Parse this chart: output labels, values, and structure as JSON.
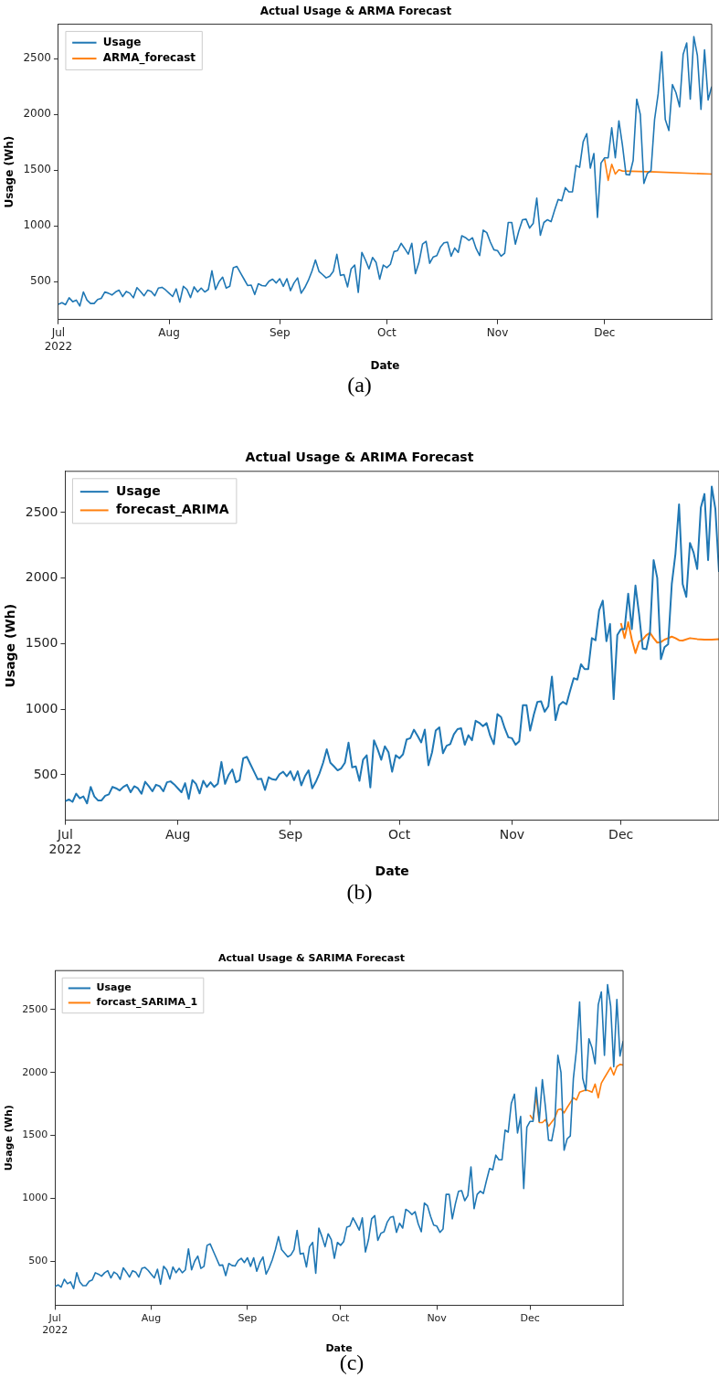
{
  "chart_data": [
    {
      "type": "line",
      "title": "Actual Usage & ARMA Forecast",
      "xlabel": "Date",
      "ylabel": "Usage (Wh)",
      "annotations": [
        "(a)"
      ],
      "legend": "top left",
      "xlim": [
        "2022-07-01",
        "2022-12-31"
      ],
      "ylim": [
        160,
        2810
      ],
      "yticks": [
        500,
        1000,
        1500,
        2000,
        2500
      ],
      "xticks": [
        {
          "value": "2022-07-01",
          "label": "Jul\n2022"
        },
        {
          "value": "2022-08-01",
          "label": "Aug"
        },
        {
          "value": "2022-09-01",
          "label": "Sep"
        },
        {
          "value": "2022-10-01",
          "label": "Oct"
        },
        {
          "value": "2022-11-01",
          "label": "Nov"
        },
        {
          "value": "2022-12-01",
          "label": "Dec"
        }
      ],
      "x": [
        "2022-07-01",
        "2022-07-02",
        "2022-07-03",
        "2022-07-04",
        "2022-07-05",
        "2022-07-06",
        "2022-07-07",
        "2022-07-08",
        "2022-07-09",
        "2022-07-10",
        "2022-07-11",
        "2022-07-12",
        "2022-07-13",
        "2022-07-14",
        "2022-07-15",
        "2022-07-16",
        "2022-07-17",
        "2022-07-18",
        "2022-07-19",
        "2022-07-20",
        "2022-07-21",
        "2022-07-22",
        "2022-07-23",
        "2022-07-24",
        "2022-07-25",
        "2022-07-26",
        "2022-07-27",
        "2022-07-28",
        "2022-07-29",
        "2022-07-30",
        "2022-07-31",
        "2022-08-01",
        "2022-08-02",
        "2022-08-03",
        "2022-08-04",
        "2022-08-05",
        "2022-08-06",
        "2022-08-07",
        "2022-08-08",
        "2022-08-09",
        "2022-08-10",
        "2022-08-11",
        "2022-08-12",
        "2022-08-13",
        "2022-08-14",
        "2022-08-15",
        "2022-08-16",
        "2022-08-17",
        "2022-08-18",
        "2022-08-19",
        "2022-08-20",
        "2022-08-21",
        "2022-08-22",
        "2022-08-23",
        "2022-08-24",
        "2022-08-25",
        "2022-08-26",
        "2022-08-27",
        "2022-08-28",
        "2022-08-29",
        "2022-08-30",
        "2022-08-31",
        "2022-09-01",
        "2022-09-02",
        "2022-09-03",
        "2022-09-04",
        "2022-09-05",
        "2022-09-06",
        "2022-09-07",
        "2022-09-08",
        "2022-09-09",
        "2022-09-10",
        "2022-09-11",
        "2022-09-12",
        "2022-09-13",
        "2022-09-14",
        "2022-09-15",
        "2022-09-16",
        "2022-09-17",
        "2022-09-18",
        "2022-09-19",
        "2022-09-20",
        "2022-09-21",
        "2022-09-22",
        "2022-09-23",
        "2022-09-24",
        "2022-09-25",
        "2022-09-26",
        "2022-09-27",
        "2022-09-28",
        "2022-09-29",
        "2022-09-30",
        "2022-10-01",
        "2022-10-02",
        "2022-10-03",
        "2022-10-04",
        "2022-10-05",
        "2022-10-06",
        "2022-10-07",
        "2022-10-08",
        "2022-10-09",
        "2022-10-10",
        "2022-10-11",
        "2022-10-12",
        "2022-10-13",
        "2022-10-14",
        "2022-10-15",
        "2022-10-16",
        "2022-10-17",
        "2022-10-18",
        "2022-10-19",
        "2022-10-20",
        "2022-10-21",
        "2022-10-22",
        "2022-10-23",
        "2022-10-24",
        "2022-10-25",
        "2022-10-26",
        "2022-10-27",
        "2022-10-28",
        "2022-10-29",
        "2022-10-30",
        "2022-10-31",
        "2022-11-01",
        "2022-11-02",
        "2022-11-03",
        "2022-11-04",
        "2022-11-05",
        "2022-11-06",
        "2022-11-07",
        "2022-11-08",
        "2022-11-09",
        "2022-11-10",
        "2022-11-11",
        "2022-11-12",
        "2022-11-13",
        "2022-11-14",
        "2022-11-15",
        "2022-11-16",
        "2022-11-17",
        "2022-11-18",
        "2022-11-19",
        "2022-11-20",
        "2022-11-21",
        "2022-11-22",
        "2022-11-23",
        "2022-11-24",
        "2022-11-25",
        "2022-11-26",
        "2022-11-27",
        "2022-11-28",
        "2022-11-29",
        "2022-11-30",
        "2022-12-01",
        "2022-12-02",
        "2022-12-03",
        "2022-12-04",
        "2022-12-05",
        "2022-12-06",
        "2022-12-07",
        "2022-12-08",
        "2022-12-09",
        "2022-12-10",
        "2022-12-11",
        "2022-12-12",
        "2022-12-13",
        "2022-12-14",
        "2022-12-15",
        "2022-12-16",
        "2022-12-17",
        "2022-12-18",
        "2022-12-19",
        "2022-12-20",
        "2022-12-21",
        "2022-12-22",
        "2022-12-23",
        "2022-12-24",
        "2022-12-25",
        "2022-12-26",
        "2022-12-27",
        "2022-12-28",
        "2022-12-29",
        "2022-12-30",
        "2022-12-31"
      ],
      "series": [
        {
          "name": "Usage",
          "color": "#1f77b4",
          "values": [
            298,
            312,
            294,
            356,
            321,
            335,
            282,
            408,
            335,
            305,
            305,
            340,
            351,
            408,
            397,
            381,
            408,
            424,
            367,
            413,
            397,
            356,
            447,
            413,
            374,
            424,
            413,
            374,
            443,
            450,
            427,
            397,
            367,
            436,
            317,
            459,
            431,
            358,
            454,
            408,
            443,
            408,
            431,
            598,
            431,
            500,
            541,
            443,
            459,
            626,
            637,
            580,
            523,
            466,
            470,
            385,
            482,
            466,
            461,
            505,
            523,
            489,
            527,
            459,
            527,
            420,
            489,
            534,
            397,
            447,
            511,
            592,
            695,
            592,
            564,
            534,
            550,
            592,
            745,
            557,
            564,
            454,
            615,
            649,
            404,
            763,
            695,
            615,
            718,
            672,
            523,
            649,
            626,
            656,
            770,
            779,
            844,
            798,
            747,
            844,
            573,
            672,
            837,
            862,
            665,
            722,
            734,
            809,
            848,
            855,
            729,
            802,
            763,
            912,
            896,
            871,
            894,
            798,
            734,
            963,
            940,
            855,
            786,
            779,
            729,
            756,
            1031,
            1031,
            837,
            958,
            1056,
            1061,
            981,
            1022,
            1249,
            917,
            1031,
            1056,
            1038,
            1141,
            1237,
            1226,
            1343,
            1306,
            1306,
            1542,
            1526,
            1755,
            1828,
            1519,
            1650,
            1077,
            1565,
            1611,
            1611,
            1881,
            1611,
            1943,
            1725,
            1462,
            1457,
            1588,
            2137,
            2000,
            1382,
            1473,
            1496,
            1954,
            2183,
            2561,
            1954,
            1856,
            2268,
            2195,
            2069,
            2538,
            2641,
            2137,
            2698,
            2527,
            2046,
            2580,
            2130,
            2250
          ]
        },
        {
          "name": "ARMA_forecast",
          "color": "#ff7f0e",
          "x": [
            "2022-12-01",
            "2022-12-02",
            "2022-12-03",
            "2022-12-04",
            "2022-12-05",
            "2022-12-06",
            "2022-12-15",
            "2022-12-31"
          ],
          "values": [
            1600,
            1409,
            1553,
            1466,
            1504,
            1493,
            1485,
            1465
          ]
        }
      ]
    },
    {
      "type": "line",
      "title": "Actual Usage & ARIMA Forecast",
      "xlabel": "Date",
      "ylabel": "Usage (Wh)",
      "annotations": [
        "(b)"
      ],
      "legend": "top left",
      "xlim": [
        "2022-07-01",
        "2022-12-28"
      ],
      "ylim": [
        154,
        2814
      ],
      "yticks": [
        500,
        1000,
        1500,
        2000,
        2500
      ],
      "xticks": [
        {
          "value": "2022-07-01",
          "label": "Jul\n2022"
        },
        {
          "value": "2022-08-01",
          "label": "Aug"
        },
        {
          "value": "2022-09-01",
          "label": "Sep"
        },
        {
          "value": "2022-10-01",
          "label": "Oct"
        },
        {
          "value": "2022-11-01",
          "label": "Nov"
        },
        {
          "value": "2022-12-01",
          "label": "Dec"
        }
      ],
      "x": [
        "2022-07-01",
        "2022-07-02",
        "2022-07-03",
        "2022-07-04",
        "2022-07-05",
        "2022-07-06",
        "2022-07-07",
        "2022-07-08",
        "2022-07-09",
        "2022-07-10",
        "2022-07-11",
        "2022-07-12",
        "2022-07-13",
        "2022-07-14",
        "2022-07-15",
        "2022-07-16",
        "2022-07-17",
        "2022-07-18",
        "2022-07-19",
        "2022-07-20",
        "2022-07-21",
        "2022-07-22",
        "2022-07-23",
        "2022-07-24",
        "2022-07-25",
        "2022-07-26",
        "2022-07-27",
        "2022-07-28",
        "2022-07-29",
        "2022-07-30",
        "2022-07-31",
        "2022-08-01",
        "2022-08-02",
        "2022-08-03",
        "2022-08-04",
        "2022-08-05",
        "2022-08-06",
        "2022-08-07",
        "2022-08-08",
        "2022-08-09",
        "2022-08-10",
        "2022-08-11",
        "2022-08-12",
        "2022-08-13",
        "2022-08-14",
        "2022-08-15",
        "2022-08-16",
        "2022-08-17",
        "2022-08-18",
        "2022-08-19",
        "2022-08-20",
        "2022-08-21",
        "2022-08-22",
        "2022-08-23",
        "2022-08-24",
        "2022-08-25",
        "2022-08-26",
        "2022-08-27",
        "2022-08-28",
        "2022-08-29",
        "2022-08-30",
        "2022-08-31",
        "2022-09-01",
        "2022-09-02",
        "2022-09-03",
        "2022-09-04",
        "2022-09-05",
        "2022-09-06",
        "2022-09-07",
        "2022-09-08",
        "2022-09-09",
        "2022-09-10",
        "2022-09-11",
        "2022-09-12",
        "2022-09-13",
        "2022-09-14",
        "2022-09-15",
        "2022-09-16",
        "2022-09-17",
        "2022-09-18",
        "2022-09-19",
        "2022-09-20",
        "2022-09-21",
        "2022-09-22",
        "2022-09-23",
        "2022-09-24",
        "2022-09-25",
        "2022-09-26",
        "2022-09-27",
        "2022-09-28",
        "2022-09-29",
        "2022-09-30",
        "2022-10-01",
        "2022-10-02",
        "2022-10-03",
        "2022-10-04",
        "2022-10-05",
        "2022-10-06",
        "2022-10-07",
        "2022-10-08",
        "2022-10-09",
        "2022-10-10",
        "2022-10-11",
        "2022-10-12",
        "2022-10-13",
        "2022-10-14",
        "2022-10-15",
        "2022-10-16",
        "2022-10-17",
        "2022-10-18",
        "2022-10-19",
        "2022-10-20",
        "2022-10-21",
        "2022-10-22",
        "2022-10-23",
        "2022-10-24",
        "2022-10-25",
        "2022-10-26",
        "2022-10-27",
        "2022-10-28",
        "2022-10-29",
        "2022-10-30",
        "2022-10-31",
        "2022-11-01",
        "2022-11-02",
        "2022-11-03",
        "2022-11-04",
        "2022-11-05",
        "2022-11-06",
        "2022-11-07",
        "2022-11-08",
        "2022-11-09",
        "2022-11-10",
        "2022-11-11",
        "2022-11-12",
        "2022-11-13",
        "2022-11-14",
        "2022-11-15",
        "2022-11-16",
        "2022-11-17",
        "2022-11-18",
        "2022-11-19",
        "2022-11-20",
        "2022-11-21",
        "2022-11-22",
        "2022-11-23",
        "2022-11-24",
        "2022-11-25",
        "2022-11-26",
        "2022-11-27",
        "2022-11-28",
        "2022-11-29",
        "2022-11-30",
        "2022-12-01",
        "2022-12-02",
        "2022-12-03",
        "2022-12-04",
        "2022-12-05",
        "2022-12-06",
        "2022-12-07",
        "2022-12-08",
        "2022-12-09",
        "2022-12-10",
        "2022-12-11",
        "2022-12-12",
        "2022-12-13",
        "2022-12-14",
        "2022-12-15",
        "2022-12-16",
        "2022-12-17",
        "2022-12-18",
        "2022-12-19",
        "2022-12-20",
        "2022-12-21",
        "2022-12-22",
        "2022-12-23",
        "2022-12-24",
        "2022-12-25",
        "2022-12-26",
        "2022-12-27",
        "2022-12-28"
      ],
      "series": [
        {
          "name": "Usage",
          "color": "#1f77b4",
          "values": [
            298,
            312,
            294,
            356,
            321,
            335,
            282,
            408,
            335,
            305,
            305,
            340,
            351,
            408,
            397,
            381,
            408,
            424,
            367,
            413,
            397,
            356,
            447,
            413,
            374,
            424,
            413,
            374,
            443,
            450,
            427,
            397,
            367,
            436,
            317,
            459,
            431,
            358,
            454,
            408,
            443,
            408,
            431,
            598,
            431,
            500,
            541,
            443,
            459,
            626,
            637,
            580,
            523,
            466,
            470,
            385,
            482,
            466,
            461,
            505,
            523,
            489,
            527,
            459,
            527,
            420,
            489,
            534,
            397,
            447,
            511,
            592,
            695,
            592,
            564,
            534,
            550,
            592,
            745,
            557,
            564,
            454,
            615,
            649,
            404,
            763,
            695,
            615,
            718,
            672,
            523,
            649,
            626,
            656,
            770,
            779,
            844,
            798,
            747,
            844,
            573,
            672,
            837,
            862,
            665,
            722,
            734,
            809,
            848,
            855,
            729,
            802,
            763,
            912,
            896,
            871,
            894,
            798,
            734,
            963,
            940,
            855,
            786,
            779,
            729,
            756,
            1031,
            1031,
            837,
            958,
            1056,
            1061,
            981,
            1022,
            1249,
            917,
            1031,
            1056,
            1038,
            1141,
            1237,
            1226,
            1343,
            1306,
            1306,
            1542,
            1526,
            1755,
            1828,
            1519,
            1650,
            1077,
            1565,
            1611,
            1611,
            1881,
            1611,
            1943,
            1725,
            1462,
            1457,
            1588,
            2137,
            2000,
            1382,
            1473,
            1496,
            1954,
            2183,
            2561,
            1954,
            1856,
            2268,
            2195,
            2069,
            2538,
            2641,
            2137,
            2698,
            2527,
            2046
          ]
        },
        {
          "name": "forecast_ARIMA",
          "color": "#ff7f0e",
          "x": [
            "2022-12-01",
            "2022-12-02",
            "2022-12-03",
            "2022-12-04",
            "2022-12-05",
            "2022-12-06",
            "2022-12-07",
            "2022-12-08",
            "2022-12-09",
            "2022-12-10",
            "2022-12-11",
            "2022-12-12",
            "2022-12-13",
            "2022-12-14",
            "2022-12-15",
            "2022-12-16",
            "2022-12-17",
            "2022-12-18",
            "2022-12-20",
            "2022-12-22",
            "2022-12-24",
            "2022-12-26",
            "2022-12-28"
          ],
          "values": [
            1657,
            1542,
            1664,
            1531,
            1428,
            1515,
            1531,
            1565,
            1583,
            1542,
            1508,
            1512,
            1531,
            1542,
            1553,
            1542,
            1526,
            1524,
            1542,
            1535,
            1531,
            1531,
            1535
          ]
        }
      ]
    },
    {
      "type": "line",
      "title": "Actual Usage & SARIMA Forecast",
      "xlabel": "Date",
      "ylabel": "Usage (Wh)",
      "annotations": [
        "(c)"
      ],
      "legend": "top left",
      "xlim": [
        "2022-07-01",
        "2022-12-31"
      ],
      "ylim": [
        150,
        2810
      ],
      "yticks": [
        500,
        1000,
        1500,
        2000,
        2500
      ],
      "xticks": [
        {
          "value": "2022-07-01",
          "label": "Jul\n2022"
        },
        {
          "value": "2022-08-01",
          "label": "Aug"
        },
        {
          "value": "2022-09-01",
          "label": "Sep"
        },
        {
          "value": "2022-10-01",
          "label": "Oct"
        },
        {
          "value": "2022-11-01",
          "label": "Nov"
        },
        {
          "value": "2022-12-01",
          "label": "Dec"
        }
      ],
      "x": [
        "2022-07-01",
        "2022-07-02",
        "2022-07-03",
        "2022-07-04",
        "2022-07-05",
        "2022-07-06",
        "2022-07-07",
        "2022-07-08",
        "2022-07-09",
        "2022-07-10",
        "2022-07-11",
        "2022-07-12",
        "2022-07-13",
        "2022-07-14",
        "2022-07-15",
        "2022-07-16",
        "2022-07-17",
        "2022-07-18",
        "2022-07-19",
        "2022-07-20",
        "2022-07-21",
        "2022-07-22",
        "2022-07-23",
        "2022-07-24",
        "2022-07-25",
        "2022-07-26",
        "2022-07-27",
        "2022-07-28",
        "2022-07-29",
        "2022-07-30",
        "2022-07-31",
        "2022-08-01",
        "2022-08-02",
        "2022-08-03",
        "2022-08-04",
        "2022-08-05",
        "2022-08-06",
        "2022-08-07",
        "2022-08-08",
        "2022-08-09",
        "2022-08-10",
        "2022-08-11",
        "2022-08-12",
        "2022-08-13",
        "2022-08-14",
        "2022-08-15",
        "2022-08-16",
        "2022-08-17",
        "2022-08-18",
        "2022-08-19",
        "2022-08-20",
        "2022-08-21",
        "2022-08-22",
        "2022-08-23",
        "2022-08-24",
        "2022-08-25",
        "2022-08-26",
        "2022-08-27",
        "2022-08-28",
        "2022-08-29",
        "2022-08-30",
        "2022-08-31",
        "2022-09-01",
        "2022-09-02",
        "2022-09-03",
        "2022-09-04",
        "2022-09-05",
        "2022-09-06",
        "2022-09-07",
        "2022-09-08",
        "2022-09-09",
        "2022-09-10",
        "2022-09-11",
        "2022-09-12",
        "2022-09-13",
        "2022-09-14",
        "2022-09-15",
        "2022-09-16",
        "2022-09-17",
        "2022-09-18",
        "2022-09-19",
        "2022-09-20",
        "2022-09-21",
        "2022-09-22",
        "2022-09-23",
        "2022-09-24",
        "2022-09-25",
        "2022-09-26",
        "2022-09-27",
        "2022-09-28",
        "2022-09-29",
        "2022-09-30",
        "2022-10-01",
        "2022-10-02",
        "2022-10-03",
        "2022-10-04",
        "2022-10-05",
        "2022-10-06",
        "2022-10-07",
        "2022-10-08",
        "2022-10-09",
        "2022-10-10",
        "2022-10-11",
        "2022-10-12",
        "2022-10-13",
        "2022-10-14",
        "2022-10-15",
        "2022-10-16",
        "2022-10-17",
        "2022-10-18",
        "2022-10-19",
        "2022-10-20",
        "2022-10-21",
        "2022-10-22",
        "2022-10-23",
        "2022-10-24",
        "2022-10-25",
        "2022-10-26",
        "2022-10-27",
        "2022-10-28",
        "2022-10-29",
        "2022-10-30",
        "2022-10-31",
        "2022-11-01",
        "2022-11-02",
        "2022-11-03",
        "2022-11-04",
        "2022-11-05",
        "2022-11-06",
        "2022-11-07",
        "2022-11-08",
        "2022-11-09",
        "2022-11-10",
        "2022-11-11",
        "2022-11-12",
        "2022-11-13",
        "2022-11-14",
        "2022-11-15",
        "2022-11-16",
        "2022-11-17",
        "2022-11-18",
        "2022-11-19",
        "2022-11-20",
        "2022-11-21",
        "2022-11-22",
        "2022-11-23",
        "2022-11-24",
        "2022-11-25",
        "2022-11-26",
        "2022-11-27",
        "2022-11-28",
        "2022-11-29",
        "2022-11-30",
        "2022-12-01",
        "2022-12-02",
        "2022-12-03",
        "2022-12-04",
        "2022-12-05",
        "2022-12-06",
        "2022-12-07",
        "2022-12-08",
        "2022-12-09",
        "2022-12-10",
        "2022-12-11",
        "2022-12-12",
        "2022-12-13",
        "2022-12-14",
        "2022-12-15",
        "2022-12-16",
        "2022-12-17",
        "2022-12-18",
        "2022-12-19",
        "2022-12-20",
        "2022-12-21",
        "2022-12-22",
        "2022-12-23",
        "2022-12-24",
        "2022-12-25",
        "2022-12-26",
        "2022-12-27",
        "2022-12-28",
        "2022-12-29",
        "2022-12-30",
        "2022-12-31"
      ],
      "series": [
        {
          "name": "Usage",
          "color": "#1f77b4",
          "values": [
            298,
            312,
            294,
            356,
            321,
            335,
            282,
            408,
            335,
            305,
            305,
            340,
            351,
            408,
            397,
            381,
            408,
            424,
            367,
            413,
            397,
            356,
            447,
            413,
            374,
            424,
            413,
            374,
            443,
            450,
            427,
            397,
            367,
            436,
            317,
            459,
            431,
            358,
            454,
            408,
            443,
            408,
            431,
            598,
            431,
            500,
            541,
            443,
            459,
            626,
            637,
            580,
            523,
            466,
            470,
            385,
            482,
            466,
            461,
            505,
            523,
            489,
            527,
            459,
            527,
            420,
            489,
            534,
            397,
            447,
            511,
            592,
            695,
            592,
            564,
            534,
            550,
            592,
            745,
            557,
            564,
            454,
            615,
            649,
            404,
            763,
            695,
            615,
            718,
            672,
            523,
            649,
            626,
            656,
            770,
            779,
            844,
            798,
            747,
            844,
            573,
            672,
            837,
            862,
            665,
            722,
            734,
            809,
            848,
            855,
            729,
            802,
            763,
            912,
            896,
            871,
            894,
            798,
            734,
            963,
            940,
            855,
            786,
            779,
            729,
            756,
            1031,
            1031,
            837,
            958,
            1056,
            1061,
            981,
            1022,
            1249,
            917,
            1031,
            1056,
            1038,
            1141,
            1237,
            1226,
            1343,
            1306,
            1306,
            1542,
            1526,
            1755,
            1828,
            1519,
            1650,
            1077,
            1565,
            1611,
            1611,
            1881,
            1611,
            1943,
            1725,
            1462,
            1457,
            1588,
            2137,
            2000,
            1382,
            1473,
            1496,
            1954,
            2183,
            2561,
            1954,
            1856,
            2268,
            2195,
            2069,
            2538,
            2641,
            2137,
            2698,
            2527,
            2046,
            2580,
            2130,
            2250
          ]
        },
        {
          "name": "forcast_SARIMA_1",
          "color": "#ff7f0e",
          "x": [
            "2022-12-01",
            "2022-12-02",
            "2022-12-03",
            "2022-12-04",
            "2022-12-05",
            "2022-12-06",
            "2022-12-07",
            "2022-12-09",
            "2022-12-10",
            "2022-12-11",
            "2022-12-12",
            "2022-12-13",
            "2022-12-15",
            "2022-12-16",
            "2022-12-17",
            "2022-12-19",
            "2022-12-20",
            "2022-12-21",
            "2022-12-22",
            "2022-12-23",
            "2022-12-24",
            "2022-12-25",
            "2022-12-27",
            "2022-12-28",
            "2022-12-29",
            "2022-12-30",
            "2022-12-31"
          ],
          "values": [
            1662,
            1626,
            1814,
            1602,
            1602,
            1626,
            1573,
            1638,
            1703,
            1710,
            1679,
            1722,
            1799,
            1782,
            1843,
            1862,
            1855,
            1843,
            1908,
            1799,
            1915,
            1958,
            2040,
            1980,
            2047,
            2064,
            2059
          ]
        }
      ]
    }
  ]
}
